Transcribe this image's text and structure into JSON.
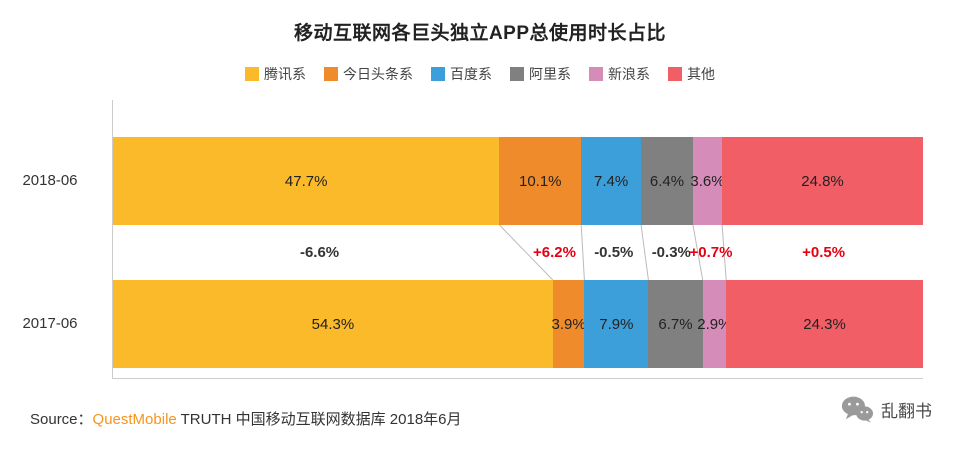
{
  "title": "移动互联网各巨头独立APP总使用时长占比",
  "chart_data": {
    "type": "bar",
    "stacked": true,
    "orientation": "horizontal",
    "unit": "%",
    "xlim": [
      0,
      100
    ],
    "legend_position": "top",
    "categories": [
      "2018-06",
      "2017-06"
    ],
    "series": [
      {
        "name": "腾讯系",
        "color": "#FBBA29",
        "values": [
          47.7,
          54.3
        ]
      },
      {
        "name": "今日头条系",
        "color": "#EF8B2A",
        "values": [
          10.1,
          3.9
        ]
      },
      {
        "name": "百度系",
        "color": "#3D9FDA",
        "values": [
          7.4,
          7.9
        ]
      },
      {
        "name": "阿里系",
        "color": "#808080",
        "values": [
          6.4,
          6.7
        ]
      },
      {
        "name": "新浪系",
        "color": "#D58CB8",
        "values": [
          3.6,
          2.9
        ]
      },
      {
        "name": "其他",
        "color": "#F15E66",
        "values": [
          24.8,
          24.3
        ]
      }
    ],
    "deltas": [
      {
        "label": "-6.6%",
        "color": "#333333"
      },
      {
        "label": "+6.2%",
        "color": "#E60012"
      },
      {
        "label": "-0.5%",
        "color": "#333333"
      },
      {
        "label": "-0.3%",
        "color": "#333333"
      },
      {
        "label": "+0.7%",
        "color": "#E60012"
      },
      {
        "label": "+0.5%",
        "color": "#E60012"
      }
    ]
  },
  "source": {
    "prefix": "Source：",
    "brand": "QuestMobile",
    "rest": " TRUTH 中国移动互联网数据库 2018年6月"
  },
  "watermark": {
    "label": "乱翻书"
  }
}
